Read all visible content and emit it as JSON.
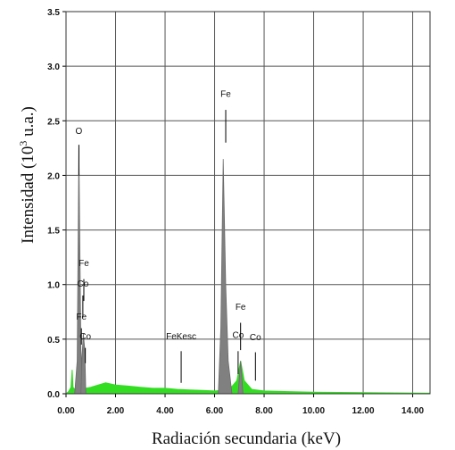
{
  "chart_data": {
    "type": "area",
    "title": "",
    "xlabel": "Radiación secundaria (keV)",
    "ylabel_main": "Intensidad  (10",
    "ylabel_sup": "3",
    "ylabel_tail": " u.a.)",
    "xlim": [
      0,
      14.7
    ],
    "ylim": [
      0,
      3.5
    ],
    "grid": true,
    "x_ticks": [
      {
        "value": 0,
        "label": "0.00"
      },
      {
        "value": 2,
        "label": "2.00"
      },
      {
        "value": 4,
        "label": "4.00"
      },
      {
        "value": 6,
        "label": "6.00"
      },
      {
        "value": 8,
        "label": "8.00"
      },
      {
        "value": 10,
        "label": "10.00"
      },
      {
        "value": 12,
        "label": "12.00"
      },
      {
        "value": 14,
        "label": "14.00"
      }
    ],
    "y_ticks": [
      {
        "value": 0,
        "label": "0.0"
      },
      {
        "value": 0.5,
        "label": "0.5"
      },
      {
        "value": 1.0,
        "label": "1.0"
      },
      {
        "value": 1.5,
        "label": "1.5"
      },
      {
        "value": 2.0,
        "label": "2.0"
      },
      {
        "value": 2.5,
        "label": "2.5"
      },
      {
        "value": 3.0,
        "label": "3.0"
      },
      {
        "value": 3.5,
        "label": "3.5"
      }
    ],
    "background_color": "#33dd22",
    "peak_color": "#808080",
    "background_spectrum": [
      [
        0.0,
        0.0
      ],
      [
        0.1,
        0.02
      ],
      [
        0.2,
        0.06
      ],
      [
        0.25,
        0.22
      ],
      [
        0.28,
        0.06
      ],
      [
        0.35,
        0.04
      ],
      [
        0.5,
        0.1
      ],
      [
        0.7,
        0.12
      ],
      [
        0.8,
        0.05
      ],
      [
        1.0,
        0.06
      ],
      [
        1.3,
        0.08
      ],
      [
        1.6,
        0.1
      ],
      [
        2.0,
        0.08
      ],
      [
        2.5,
        0.07
      ],
      [
        3.0,
        0.06
      ],
      [
        3.5,
        0.05
      ],
      [
        4.0,
        0.05
      ],
      [
        4.5,
        0.04
      ],
      [
        5.0,
        0.035
      ],
      [
        5.5,
        0.03
      ],
      [
        6.0,
        0.025
      ],
      [
        6.3,
        0.03
      ],
      [
        6.6,
        0.04
      ],
      [
        6.9,
        0.12
      ],
      [
        7.05,
        0.3
      ],
      [
        7.2,
        0.12
      ],
      [
        7.5,
        0.04
      ],
      [
        8.0,
        0.025
      ],
      [
        9.0,
        0.02
      ],
      [
        10.0,
        0.015
      ],
      [
        11.0,
        0.012
      ],
      [
        12.0,
        0.01
      ],
      [
        13.0,
        0.008
      ],
      [
        14.0,
        0.006
      ],
      [
        14.7,
        0.005
      ]
    ],
    "peaks": [
      [
        [
          0.35,
          0.0
        ],
        [
          0.45,
          0.3
        ],
        [
          0.52,
          2.25
        ],
        [
          0.6,
          0.4
        ],
        [
          0.68,
          0.0
        ]
      ],
      [
        [
          0.6,
          0.0
        ],
        [
          0.65,
          0.35
        ],
        [
          0.7,
          0.55
        ],
        [
          0.76,
          0.4
        ],
        [
          0.8,
          0.0
        ]
      ],
      [
        [
          6.15,
          0.0
        ],
        [
          6.25,
          0.6
        ],
        [
          6.35,
          2.15
        ],
        [
          6.45,
          1.0
        ],
        [
          6.55,
          0.3
        ],
        [
          6.7,
          0.0
        ]
      ],
      [
        [
          6.95,
          0.0
        ],
        [
          7.05,
          0.3
        ],
        [
          7.15,
          0.0
        ]
      ]
    ],
    "annotations": [
      {
        "text": "O",
        "x": 0.52,
        "y": 2.38,
        "line_top": 2.28,
        "line_bottom": 2.0
      },
      {
        "text": "Fe",
        "x": 0.72,
        "y": 1.17,
        "line_top": 1.05,
        "line_bottom": 0.85
      },
      {
        "text": "Co",
        "x": 0.68,
        "y": 0.98,
        "line_top": 0.9,
        "line_bottom": 0.7
      },
      {
        "text": "Fe",
        "x": 0.62,
        "y": 0.68,
        "line_top": 0.6,
        "line_bottom": 0.45
      },
      {
        "text": "Co",
        "x": 0.78,
        "y": 0.5,
        "line_top": 0.42,
        "line_bottom": 0.28
      },
      {
        "text": "FeKesc",
        "x": 4.65,
        "y": 0.5,
        "line_top": 0.39,
        "line_bottom": 0.1
      },
      {
        "text": "Fe",
        "x": 6.45,
        "y": 2.72,
        "line_top": 2.6,
        "line_bottom": 2.3
      },
      {
        "text": "Co",
        "x": 6.95,
        "y": 0.51,
        "line_top": 0.39,
        "line_bottom": 0.18
      },
      {
        "text": "Fe",
        "x": 7.05,
        "y": 0.77,
        "line_top": 0.65,
        "line_bottom": 0.4
      },
      {
        "text": "Co",
        "x": 7.65,
        "y": 0.49,
        "line_top": 0.38,
        "line_bottom": 0.12
      }
    ]
  }
}
